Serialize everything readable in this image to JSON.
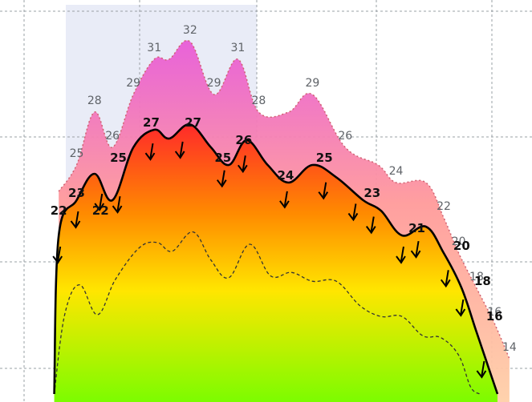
{
  "chart_data": {
    "type": "area",
    "grid": true,
    "highlight_band": true,
    "colors": {
      "upper_top": "#e85bd8",
      "upper_mid": "#ff9a9a",
      "upper_bottom": "#ffd0a8",
      "hot": "#ff2a2a",
      "warm": "#ff8a00",
      "mild": "#ffe600",
      "cool": "#7cfc00",
      "line": "#000000",
      "band": "#e9ecf7"
    },
    "y_range": [
      12,
      34
    ],
    "upper_series": {
      "points": [
        {
          "x": 0.3,
          "y": 23.5
        },
        {
          "x": 0.9,
          "y": 25
        },
        {
          "x": 1.5,
          "y": 28
        },
        {
          "x": 2.1,
          "y": 26
        },
        {
          "x": 2.8,
          "y": 29
        },
        {
          "x": 3.5,
          "y": 31
        },
        {
          "x": 4.0,
          "y": 31
        },
        {
          "x": 4.7,
          "y": 32
        },
        {
          "x": 5.5,
          "y": 29
        },
        {
          "x": 6.3,
          "y": 31
        },
        {
          "x": 7.0,
          "y": 28
        },
        {
          "x": 8.0,
          "y": 28
        },
        {
          "x": 8.8,
          "y": 29
        },
        {
          "x": 9.9,
          "y": 26
        },
        {
          "x": 11.0,
          "y": 25
        },
        {
          "x": 11.6,
          "y": 24
        },
        {
          "x": 12.6,
          "y": 24
        },
        {
          "x": 13.2,
          "y": 22
        },
        {
          "x": 13.7,
          "y": 20
        },
        {
          "x": 14.3,
          "y": 18
        },
        {
          "x": 14.9,
          "y": 16
        },
        {
          "x": 15.4,
          "y": 14
        }
      ],
      "labels": [
        {
          "x": 0.9,
          "y": 25,
          "text": "25"
        },
        {
          "x": 1.5,
          "y": 28,
          "text": "28"
        },
        {
          "x": 2.1,
          "y": 26,
          "text": "26"
        },
        {
          "x": 2.8,
          "y": 29,
          "text": "29"
        },
        {
          "x": 3.5,
          "y": 31,
          "text": "31"
        },
        {
          "x": 4.7,
          "y": 32,
          "text": "32"
        },
        {
          "x": 5.5,
          "y": 29,
          "text": "29"
        },
        {
          "x": 6.3,
          "y": 31,
          "text": "31"
        },
        {
          "x": 7.0,
          "y": 28,
          "text": "28"
        },
        {
          "x": 8.8,
          "y": 29,
          "text": "29"
        },
        {
          "x": 9.9,
          "y": 26,
          "text": "26"
        },
        {
          "x": 11.6,
          "y": 24,
          "text": "24"
        },
        {
          "x": 13.2,
          "y": 22,
          "text": "22"
        },
        {
          "x": 13.7,
          "y": 20,
          "text": "20"
        },
        {
          "x": 14.3,
          "y": 18,
          "text": "18"
        },
        {
          "x": 14.9,
          "y": 16,
          "text": "16"
        },
        {
          "x": 15.4,
          "y": 14,
          "text": "14"
        }
      ]
    },
    "main_series": {
      "points": [
        {
          "x": 0.15,
          "y": 12
        },
        {
          "x": 0.3,
          "y": 21
        },
        {
          "x": 0.9,
          "y": 23
        },
        {
          "x": 1.5,
          "y": 24.5
        },
        {
          "x": 2.1,
          "y": 23
        },
        {
          "x": 2.8,
          "y": 26
        },
        {
          "x": 3.5,
          "y": 27
        },
        {
          "x": 4.0,
          "y": 26.5
        },
        {
          "x": 4.7,
          "y": 27.3
        },
        {
          "x": 5.4,
          "y": 26
        },
        {
          "x": 6.0,
          "y": 25
        },
        {
          "x": 6.6,
          "y": 26.4
        },
        {
          "x": 7.3,
          "y": 25
        },
        {
          "x": 8.0,
          "y": 24
        },
        {
          "x": 8.8,
          "y": 25
        },
        {
          "x": 9.6,
          "y": 24.3
        },
        {
          "x": 10.5,
          "y": 23
        },
        {
          "x": 11.1,
          "y": 22.4
        },
        {
          "x": 11.8,
          "y": 21
        },
        {
          "x": 12.6,
          "y": 21.5
        },
        {
          "x": 13.2,
          "y": 20
        },
        {
          "x": 13.8,
          "y": 18
        },
        {
          "x": 14.3,
          "y": 15.5
        },
        {
          "x": 14.7,
          "y": 13.5
        },
        {
          "x": 15.0,
          "y": 12
        }
      ],
      "labels": [
        {
          "x": 0.3,
          "y": 22,
          "text": "22"
        },
        {
          "x": 0.9,
          "y": 23,
          "text": "23"
        },
        {
          "x": 1.7,
          "y": 22,
          "text": "22"
        },
        {
          "x": 2.3,
          "y": 25,
          "text": "25"
        },
        {
          "x": 3.4,
          "y": 27,
          "text": "27"
        },
        {
          "x": 4.8,
          "y": 27,
          "text": "27"
        },
        {
          "x": 5.8,
          "y": 25,
          "text": "25"
        },
        {
          "x": 6.5,
          "y": 26,
          "text": "26"
        },
        {
          "x": 7.9,
          "y": 24,
          "text": "24"
        },
        {
          "x": 9.2,
          "y": 25,
          "text": "25"
        },
        {
          "x": 10.8,
          "y": 23,
          "text": "23"
        },
        {
          "x": 12.3,
          "y": 21,
          "text": "21"
        },
        {
          "x": 13.8,
          "y": 20,
          "text": "20"
        },
        {
          "x": 14.5,
          "y": 18,
          "text": "18"
        },
        {
          "x": 14.9,
          "y": 16,
          "text": "16"
        }
      ],
      "wind_arrows": [
        0.3,
        0.9,
        1.7,
        2.3,
        3.4,
        4.4,
        5.8,
        6.5,
        7.9,
        9.2,
        10.2,
        10.8,
        11.8,
        12.3,
        13.3,
        13.8,
        14.5
      ]
    },
    "dashed_series": {
      "points": [
        {
          "x": 0.15,
          "y": 12
        },
        {
          "x": 0.5,
          "y": 16.5
        },
        {
          "x": 1.0,
          "y": 18.2
        },
        {
          "x": 1.6,
          "y": 16.5
        },
        {
          "x": 2.2,
          "y": 18.5
        },
        {
          "x": 3.0,
          "y": 20.3
        },
        {
          "x": 3.6,
          "y": 20.6
        },
        {
          "x": 4.1,
          "y": 20.1
        },
        {
          "x": 4.8,
          "y": 21.2
        },
        {
          "x": 5.4,
          "y": 19.6
        },
        {
          "x": 6.0,
          "y": 18.6
        },
        {
          "x": 6.7,
          "y": 20.5
        },
        {
          "x": 7.4,
          "y": 18.7
        },
        {
          "x": 8.1,
          "y": 18.9
        },
        {
          "x": 8.8,
          "y": 18.4
        },
        {
          "x": 9.6,
          "y": 18.4
        },
        {
          "x": 10.4,
          "y": 17.0
        },
        {
          "x": 11.1,
          "y": 16.4
        },
        {
          "x": 11.8,
          "y": 16.4
        },
        {
          "x": 12.5,
          "y": 15.3
        },
        {
          "x": 13.1,
          "y": 15.2
        },
        {
          "x": 13.7,
          "y": 14.2
        },
        {
          "x": 14.1,
          "y": 12.4
        },
        {
          "x": 14.4,
          "y": 12
        }
      ]
    }
  }
}
